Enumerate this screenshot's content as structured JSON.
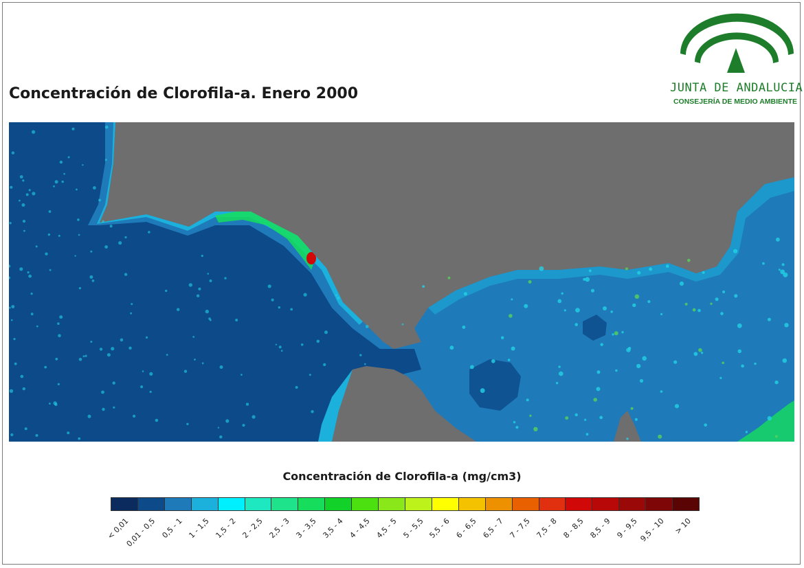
{
  "title": "Concentración de Clorofila-a. Enero 2000",
  "logo": {
    "line1": "JUNTA DE ANDALUCIA",
    "line2": "CONSEJERÍA DE MEDIO AMBIENTE",
    "colors": {
      "green": "#1e7d2a"
    }
  },
  "map": {
    "colors": {
      "land": "#6e6e6e",
      "deep_ocean": "#0d4a8a",
      "mediterranean": "#1e7ab8",
      "coastal": "#3bb5e0",
      "hotspot_cyan": "#22d3e6",
      "hotspot_green": "#55d35a",
      "hotspot_red": "#d4151b"
    }
  },
  "legend": {
    "title": "Concentración de Clorofila-a (mg/cm3)",
    "items": [
      {
        "label": "< 0,01",
        "color": "#0b2a5e"
      },
      {
        "label": "0,01 - 0,5",
        "color": "#0d4a8a"
      },
      {
        "label": "0,5 - 1",
        "color": "#1e7ab8"
      },
      {
        "label": "1 - 1,5",
        "color": "#1cb0dc"
      },
      {
        "label": "1,5 - 2",
        "color": "#00f0ff"
      },
      {
        "label": "2 - 2,5",
        "color": "#1ee8c0"
      },
      {
        "label": "2,5 - 3",
        "color": "#1ee38a"
      },
      {
        "label": "3 - 3,5",
        "color": "#16de5c"
      },
      {
        "label": "3,5 - 4",
        "color": "#12d22a"
      },
      {
        "label": "4 - 4,5",
        "color": "#4ce010"
      },
      {
        "label": "4,5 - 5",
        "color": "#8ae81a"
      },
      {
        "label": "5 - 5,5",
        "color": "#bdf21a"
      },
      {
        "label": "5,5 - 6",
        "color": "#ffff00"
      },
      {
        "label": "6 - 6,5",
        "color": "#f5c200"
      },
      {
        "label": "6,5 - 7",
        "color": "#ee9100"
      },
      {
        "label": "7 - 7,5",
        "color": "#e86000"
      },
      {
        "label": "7,5 - 8",
        "color": "#e03010"
      },
      {
        "label": "8 - 8,5",
        "color": "#d00808"
      },
      {
        "label": "8,5 - 9",
        "color": "#b80808"
      },
      {
        "label": "9 - 9,5",
        "color": "#9a0808"
      },
      {
        "label": "9,5 - 10",
        "color": "#7e0606"
      },
      {
        "label": "> 10",
        "color": "#5a0404"
      }
    ]
  }
}
